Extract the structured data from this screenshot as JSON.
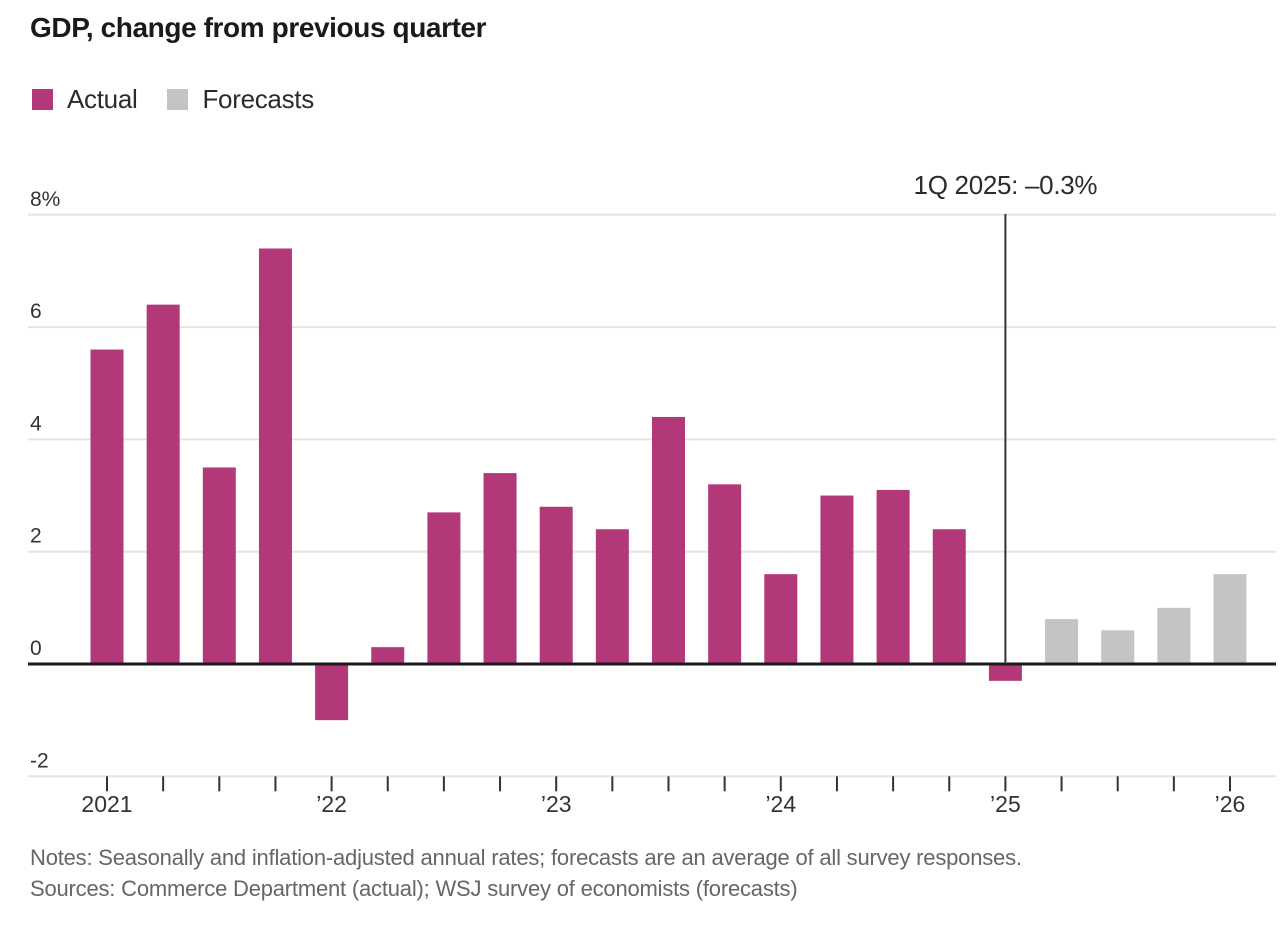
{
  "title": "GDP, change from previous quarter",
  "legend": [
    {
      "label": "Actual",
      "series": "actual"
    },
    {
      "label": "Forecasts",
      "series": "forecast"
    }
  ],
  "annotation": {
    "label": "1Q 2025: –0.3%",
    "index": 16
  },
  "notes": "Notes: Seasonally and inflation-adjusted annual rates; forecasts are an average of all survey responses.",
  "sources": "Sources: Commerce Department (actual); WSJ survey of economists (forecasts)",
  "chart_data": {
    "type": "bar",
    "title": "GDP, change from previous quarter",
    "unit": "%",
    "grid": true,
    "legend_position": "top-left",
    "ylim": [
      -2,
      8
    ],
    "colors": {
      "actual": "#b23878",
      "forecast": "#c4c4c4"
    },
    "axis_colors": {
      "gridline": "#e5e5e5",
      "zero_line": "#1a1a1a",
      "tick": "#333333",
      "label": "#333333",
      "annotation_line": "#333333"
    },
    "bars": [
      {
        "quarter": "1Q 2021",
        "value": 5.6,
        "series": "actual"
      },
      {
        "quarter": "2Q 2021",
        "value": 6.4,
        "series": "actual"
      },
      {
        "quarter": "3Q 2021",
        "value": 3.5,
        "series": "actual"
      },
      {
        "quarter": "4Q 2021",
        "value": 7.4,
        "series": "actual"
      },
      {
        "quarter": "1Q 2022",
        "value": -1.0,
        "series": "actual"
      },
      {
        "quarter": "2Q 2022",
        "value": 0.3,
        "series": "actual"
      },
      {
        "quarter": "3Q 2022",
        "value": 2.7,
        "series": "actual"
      },
      {
        "quarter": "4Q 2022",
        "value": 3.4,
        "series": "actual"
      },
      {
        "quarter": "1Q 2023",
        "value": 2.8,
        "series": "actual"
      },
      {
        "quarter": "2Q 2023",
        "value": 2.4,
        "series": "actual"
      },
      {
        "quarter": "3Q 2023",
        "value": 4.4,
        "series": "actual"
      },
      {
        "quarter": "4Q 2023",
        "value": 3.2,
        "series": "actual"
      },
      {
        "quarter": "1Q 2024",
        "value": 1.6,
        "series": "actual"
      },
      {
        "quarter": "2Q 2024",
        "value": 3.0,
        "series": "actual"
      },
      {
        "quarter": "3Q 2024",
        "value": 3.1,
        "series": "actual"
      },
      {
        "quarter": "4Q 2024",
        "value": 2.4,
        "series": "actual"
      },
      {
        "quarter": "1Q 2025",
        "value": -0.3,
        "series": "actual"
      },
      {
        "quarter": "2Q 2025",
        "value": 0.8,
        "series": "forecast"
      },
      {
        "quarter": "3Q 2025",
        "value": 0.6,
        "series": "forecast"
      },
      {
        "quarter": "4Q 2025",
        "value": 1.0,
        "series": "forecast"
      },
      {
        "quarter": "1Q 2026",
        "value": 1.6,
        "series": "forecast"
      }
    ],
    "y_axis": {
      "ticks": [
        {
          "label": "8%",
          "value": 8
        },
        {
          "label": "6",
          "value": 6
        },
        {
          "label": "4",
          "value": 4
        },
        {
          "label": "2",
          "value": 2
        },
        {
          "label": "0",
          "value": 0
        },
        {
          "label": "-2",
          "value": -2
        }
      ]
    },
    "x_axis": {
      "year_labels": [
        {
          "label": "2021",
          "index": 0
        },
        {
          "label": "’22",
          "index": 4
        },
        {
          "label": "’23",
          "index": 8
        },
        {
          "label": "’24",
          "index": 12
        },
        {
          "label": "’25",
          "index": 16
        },
        {
          "label": "’26",
          "index": 20
        }
      ]
    }
  }
}
